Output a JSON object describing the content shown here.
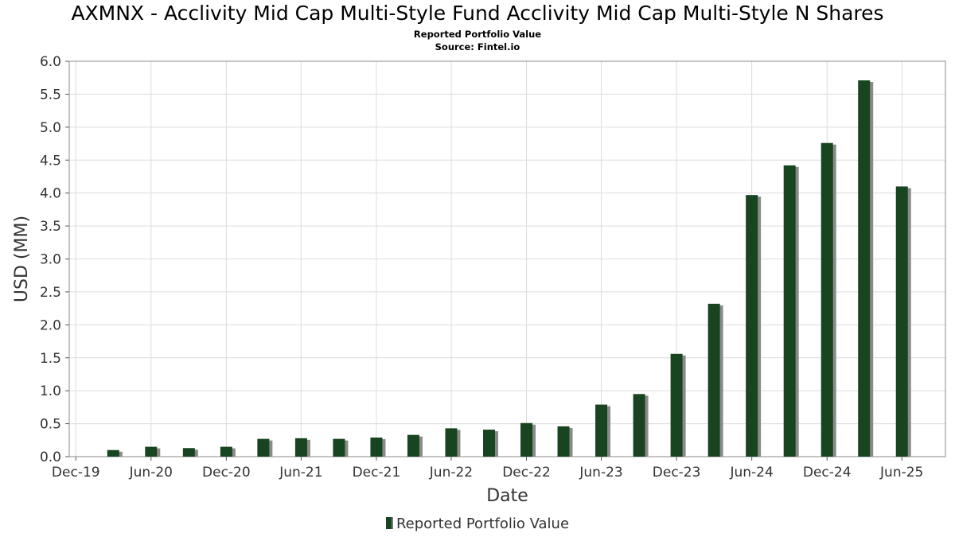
{
  "header": {
    "title": "AXMNX - Acclivity Mid Cap Multi-Style Fund Acclivity Mid Cap Multi-Style N Shares",
    "subtitle": "Reported Portfolio Value",
    "source": "Source: Fintel.io"
  },
  "chart_data": {
    "type": "bar",
    "xlabel": "Date",
    "ylabel": "USD (MM)",
    "ylim": [
      0,
      6.0
    ],
    "yticks": [
      "0.0",
      "0.5",
      "1.0",
      "1.5",
      "2.0",
      "2.5",
      "3.0",
      "3.5",
      "4.0",
      "4.5",
      "5.0",
      "5.5",
      "6.0"
    ],
    "xlim": [
      "2019-11-15",
      "2025-09-15"
    ],
    "xticks": [
      {
        "label": "Dec-19",
        "date": "2019-12-01"
      },
      {
        "label": "Jun-20",
        "date": "2020-06-01"
      },
      {
        "label": "Dec-20",
        "date": "2020-12-01"
      },
      {
        "label": "Jun-21",
        "date": "2021-06-01"
      },
      {
        "label": "Dec-21",
        "date": "2021-12-01"
      },
      {
        "label": "Jun-22",
        "date": "2022-06-01"
      },
      {
        "label": "Dec-22",
        "date": "2022-12-01"
      },
      {
        "label": "Jun-23",
        "date": "2023-06-01"
      },
      {
        "label": "Dec-23",
        "date": "2023-12-01"
      },
      {
        "label": "Jun-24",
        "date": "2024-06-01"
      },
      {
        "label": "Dec-24",
        "date": "2024-12-01"
      },
      {
        "label": "Jun-25",
        "date": "2025-06-01"
      }
    ],
    "grid": true,
    "legend_position": "bottom",
    "series": [
      {
        "name": "Reported Portfolio Value",
        "color": "#18451f",
        "points": [
          {
            "date": "2020-03-01",
            "value": 0.1
          },
          {
            "date": "2020-06-01",
            "value": 0.15
          },
          {
            "date": "2020-09-01",
            "value": 0.13
          },
          {
            "date": "2020-12-01",
            "value": 0.15
          },
          {
            "date": "2021-03-01",
            "value": 0.27
          },
          {
            "date": "2021-06-01",
            "value": 0.28
          },
          {
            "date": "2021-09-01",
            "value": 0.27
          },
          {
            "date": "2021-12-01",
            "value": 0.29
          },
          {
            "date": "2022-03-01",
            "value": 0.33
          },
          {
            "date": "2022-06-01",
            "value": 0.43
          },
          {
            "date": "2022-09-01",
            "value": 0.41
          },
          {
            "date": "2022-12-01",
            "value": 0.51
          },
          {
            "date": "2023-03-01",
            "value": 0.46
          },
          {
            "date": "2023-06-01",
            "value": 0.79
          },
          {
            "date": "2023-09-01",
            "value": 0.95
          },
          {
            "date": "2023-12-01",
            "value": 1.56
          },
          {
            "date": "2024-03-01",
            "value": 2.32
          },
          {
            "date": "2024-06-01",
            "value": 3.97
          },
          {
            "date": "2024-09-01",
            "value": 4.42
          },
          {
            "date": "2024-12-01",
            "value": 4.76
          },
          {
            "date": "2025-03-01",
            "value": 5.71
          },
          {
            "date": "2025-06-01",
            "value": 4.1
          }
        ]
      }
    ]
  }
}
